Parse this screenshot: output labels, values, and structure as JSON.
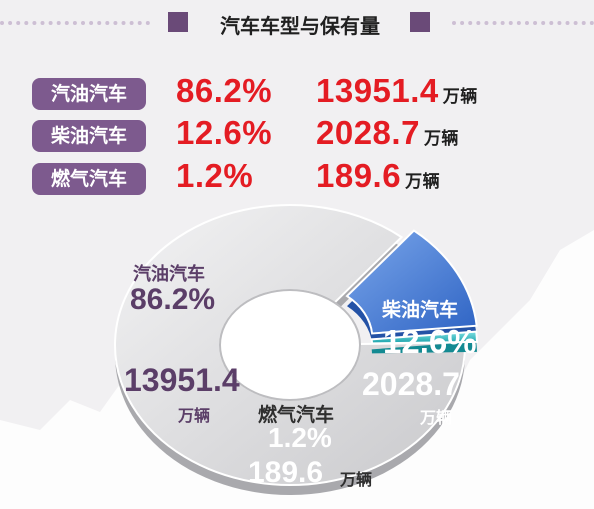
{
  "header": {
    "title": "汽车车型与保有量"
  },
  "unit": "万辆",
  "chart_data": {
    "type": "pie",
    "title": "汽车车型与保有量",
    "categories": [
      "汽油汽车",
      "柴油汽车",
      "燃气汽车"
    ],
    "percent_labels": [
      "86.2%",
      "12.6%",
      "1.2%"
    ],
    "values": [
      13951.4,
      2028.7,
      189.6
    ],
    "value_labels": [
      "13951.4",
      "2028.7",
      "189.6"
    ],
    "colors": {
      "汽油汽车": "#d9d9db",
      "柴油汽车": "#4d82d6",
      "燃气汽车": "#29b7bf"
    }
  }
}
